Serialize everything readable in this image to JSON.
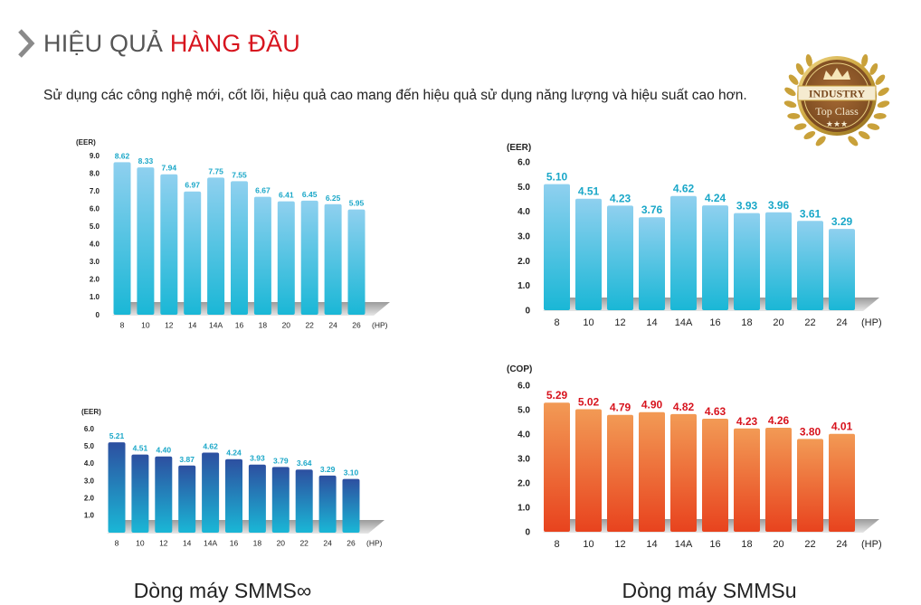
{
  "header": {
    "title_normal": "HIỆU QUẢ",
    "title_accent": "HÀNG ĐẦU"
  },
  "subtitle": "Sử dụng các công nghệ mới, cốt lõi, hiệu quả cao mang đến hiệu quả sử dụng năng lượng và hiệu suất cao hơn.",
  "badge": {
    "line1": "INDUSTRY",
    "line2": "Top Class",
    "colors": {
      "gold": "#c9a13a",
      "brown": "#8a5a2b"
    }
  },
  "captions": {
    "left": "Dòng máy SMMS∞",
    "right": "Dòng máy SMMSu"
  },
  "chart_data": [
    {
      "type": "bar",
      "ylabel": "(EER)",
      "xunit": "(HP)",
      "categories": [
        "8",
        "10",
        "12",
        "14",
        "14A",
        "16",
        "18",
        "20",
        "22",
        "24",
        "26"
      ],
      "values": [
        8.62,
        8.33,
        7.94,
        6.97,
        7.75,
        7.55,
        6.67,
        6.41,
        6.45,
        6.25,
        5.95
      ],
      "value_labels": [
        "8.62",
        "8.33",
        "7.94",
        "6.97",
        "7.75",
        "7.55",
        "6.67",
        "6.41",
        "6.45",
        "6.25",
        "5.95"
      ],
      "yticks": [
        "0",
        "1.0",
        "2.0",
        "3.0",
        "4.0",
        "5.0",
        "6.0",
        "7.0",
        "8.0",
        "9.0"
      ],
      "ylim": [
        0,
        9
      ],
      "colors": {
        "top": "#8fd0ef",
        "bottom": "#1ab7d6",
        "label": "#1aa7c8"
      }
    },
    {
      "type": "bar",
      "ylabel": "(EER)",
      "xunit": "(HP)",
      "categories": [
        "8",
        "10",
        "12",
        "14",
        "14A",
        "16",
        "18",
        "20",
        "22",
        "24"
      ],
      "values": [
        5.1,
        4.51,
        4.23,
        3.76,
        4.62,
        4.24,
        3.93,
        3.96,
        3.61,
        3.29
      ],
      "value_labels": [
        "5.10",
        "4.51",
        "4.23",
        "3.76",
        "4.62",
        "4.24",
        "3.93",
        "3.96",
        "3.61",
        "3.29"
      ],
      "yticks": [
        "0",
        "1.0",
        "2.0",
        "3.0",
        "4.0",
        "5.0",
        "6.0"
      ],
      "ylim": [
        0,
        6
      ],
      "colors": {
        "top": "#8fd0ef",
        "bottom": "#1ab7d6",
        "label": "#1aa7c8"
      }
    },
    {
      "type": "bar",
      "ylabel": "(EER)",
      "xunit": "(HP)",
      "categories": [
        "8",
        "10",
        "12",
        "14",
        "14A",
        "16",
        "18",
        "20",
        "22",
        "24",
        "26"
      ],
      "values": [
        5.21,
        4.51,
        4.4,
        3.87,
        4.62,
        4.24,
        3.93,
        3.79,
        3.64,
        3.29,
        3.1
      ],
      "value_labels": [
        "5.21",
        "4.51",
        "4.40",
        "3.87",
        "4.62",
        "4.24",
        "3.93",
        "3.79",
        "3.64",
        "3.29",
        "3.10"
      ],
      "yticks": [
        "1.0",
        "2.0",
        "3.0",
        "4.0",
        "5.0",
        "6.0"
      ],
      "ylim": [
        0,
        6
      ],
      "colors": {
        "top": "#2d4fa0",
        "bottom": "#1ab7d6",
        "label": "#1aa7c8"
      }
    },
    {
      "type": "bar",
      "ylabel": "(COP)",
      "xunit": "(HP)",
      "categories": [
        "8",
        "10",
        "12",
        "14",
        "14A",
        "16",
        "18",
        "20",
        "22",
        "24"
      ],
      "values": [
        5.29,
        5.02,
        4.79,
        4.9,
        4.82,
        4.63,
        4.23,
        4.26,
        3.8,
        4.01
      ],
      "value_labels": [
        "5.29",
        "5.02",
        "4.79",
        "4.90",
        "4.82",
        "4.63",
        "4.23",
        "4.26",
        "3.80",
        "4.01"
      ],
      "yticks": [
        "0",
        "1.0",
        "2.0",
        "3.0",
        "4.0",
        "5.0",
        "6.0"
      ],
      "ylim": [
        0,
        6
      ],
      "colors": {
        "top": "#f29a55",
        "bottom": "#e8431e",
        "label": "#d7141e"
      }
    }
  ]
}
